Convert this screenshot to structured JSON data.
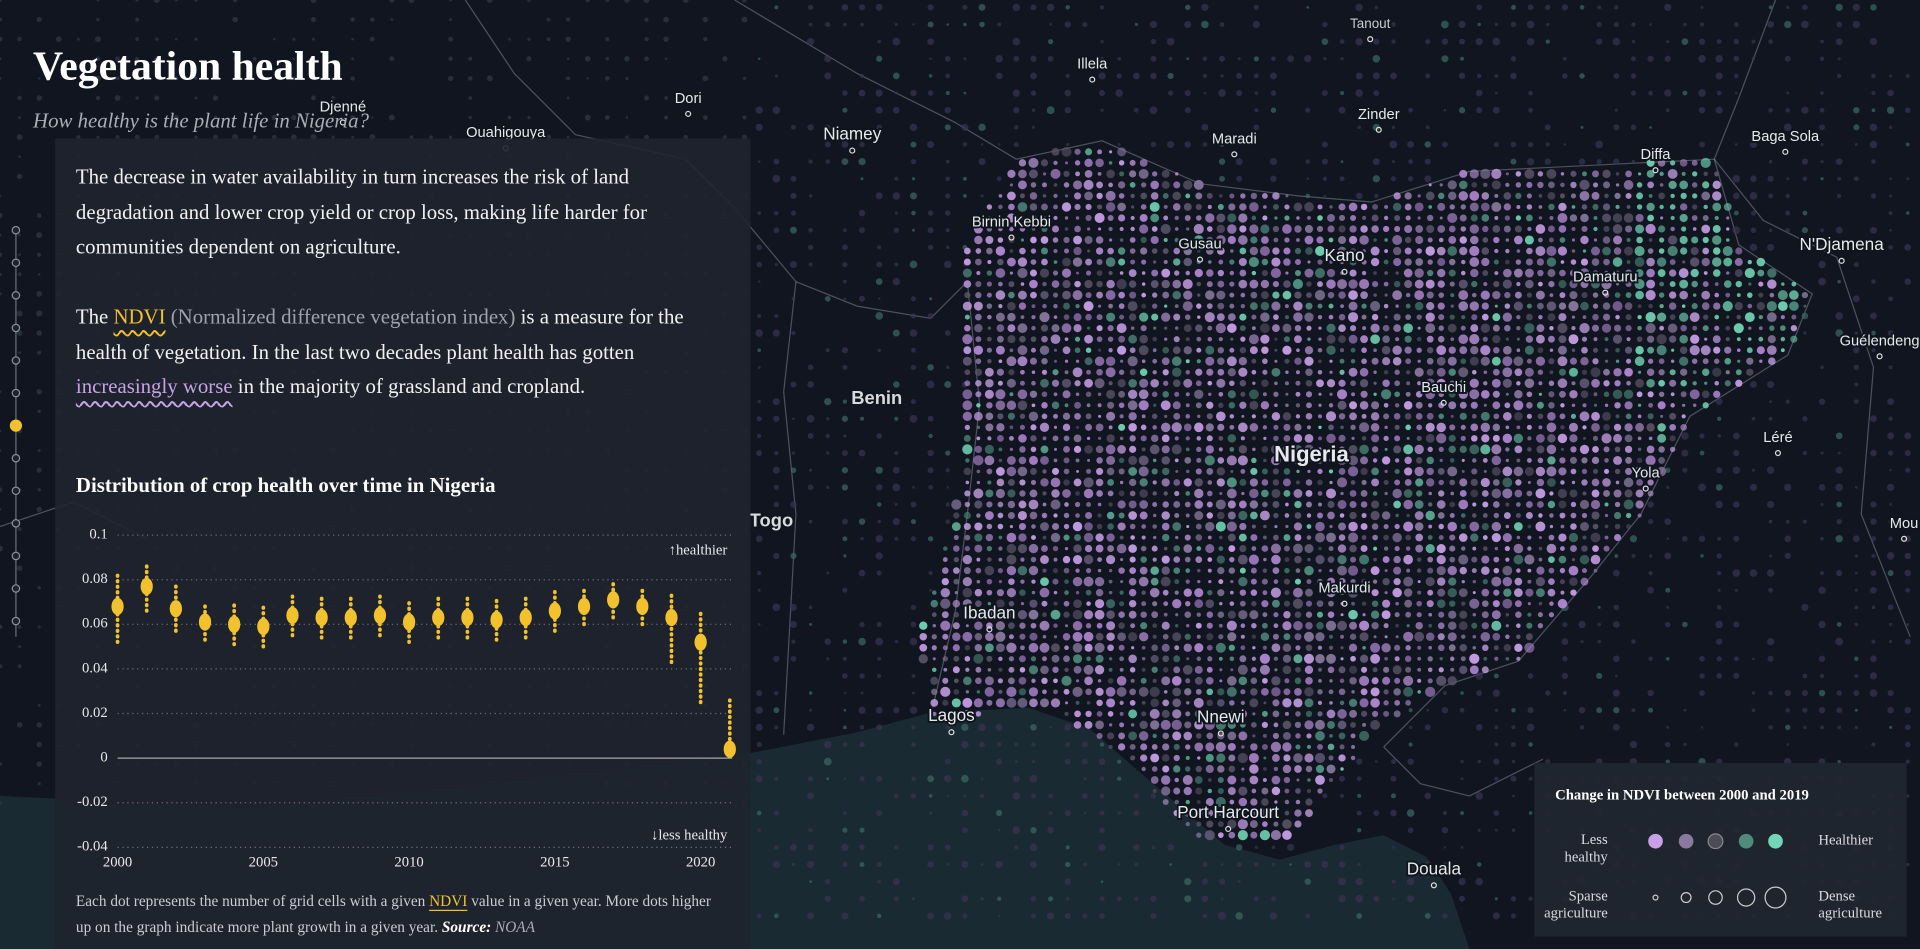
{
  "header": {
    "title": "Vegetation health",
    "subtitle": "How healthy is the plant life in Nigeria?"
  },
  "story": {
    "paragraph_1": "The decrease in water availability in turn increases the risk of land degradation and lower crop yield or crop loss, making life harder for communities dependent on agriculture.",
    "paragraph_2": [
      "The ",
      "NDVI",
      " (Normalized difference vegetation index)",
      " is a measure for the health of vegetation. In the last two decades plant health has gotten ",
      "increasingly worse",
      " in the majority of grassland and cropland."
    ],
    "caption": [
      "Each dot represents the number of grid cells with a given ",
      "NDVI",
      " value in a given year. More dots higher up on the graph indicate more plant growth in a given year. ",
      "Source:",
      " NOAA"
    ]
  },
  "chart_data": {
    "type": "dotplot",
    "title": "Distribution of crop health over time in Nigeria",
    "annotations": {
      "top": "↑healthier",
      "bottom": "↓less healthy"
    },
    "x": [
      2000,
      2001,
      2002,
      2003,
      2004,
      2005,
      2006,
      2007,
      2008,
      2009,
      2010,
      2011,
      2012,
      2013,
      2014,
      2015,
      2016,
      2017,
      2018,
      2019,
      2020,
      2021
    ],
    "values": [
      0.068,
      0.077,
      0.067,
      0.061,
      0.06,
      0.059,
      0.064,
      0.063,
      0.063,
      0.064,
      0.061,
      0.063,
      0.063,
      0.062,
      0.063,
      0.066,
      0.068,
      0.071,
      0.068,
      0.063,
      0.052,
      0.004
    ],
    "lows": [
      0.052,
      0.066,
      0.057,
      0.053,
      0.051,
      0.05,
      0.055,
      0.054,
      0.054,
      0.055,
      0.052,
      0.054,
      0.054,
      0.053,
      0.054,
      0.057,
      0.06,
      0.063,
      0.06,
      0.043,
      0.025,
      0.001
    ],
    "highs": [
      0.083,
      0.087,
      0.078,
      0.07,
      0.069,
      0.068,
      0.073,
      0.072,
      0.072,
      0.073,
      0.07,
      0.072,
      0.072,
      0.071,
      0.072,
      0.075,
      0.077,
      0.08,
      0.077,
      0.075,
      0.065,
      0.027
    ],
    "color": "#f2c12e",
    "xlim": [
      2000,
      2021
    ],
    "xticks": [
      2000,
      2005,
      2010,
      2015,
      2020
    ],
    "ylim": [
      -0.04,
      0.1
    ],
    "yticks": [
      0.1,
      0.08,
      0.06,
      0.04,
      0.02,
      0,
      -0.02,
      -0.04
    ],
    "grid": true
  },
  "map": {
    "labels": [
      "Tanout",
      "Illela",
      "Djenné",
      "Dori",
      "Ouahigouya",
      "Niamey",
      "Maradi",
      "Zinder",
      "Diffa",
      "Baga Sola",
      "Birnin Kebbi",
      "Gusau",
      "Kano",
      "Damaturu",
      "N'Djamena",
      "Guélendeng",
      "Benin",
      "Bauchi",
      "Léré",
      "Nigeria",
      "Yola",
      "Togo",
      "Mou",
      "Makurdi",
      "Ibadan",
      "Lagos",
      "Nnewi",
      "Port Harcourt",
      "Douala"
    ]
  },
  "legend": {
    "title": "Change in NDVI between 2000 and 2019",
    "health_low": "Less healthy",
    "health_high": "Healthier",
    "density_low": "Sparse agriculture",
    "density_high": "Dense agriculture"
  }
}
